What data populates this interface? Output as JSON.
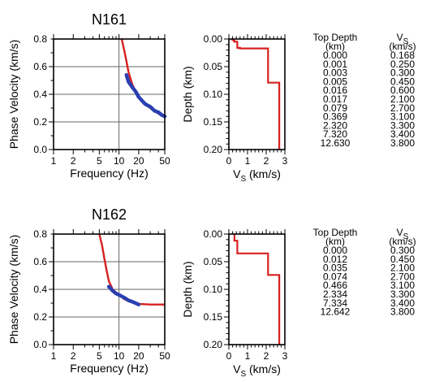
{
  "colors": {
    "model": "#d62020",
    "observed": "#2a3fb0",
    "grid": "#666666",
    "axis": "#000000"
  },
  "chart_data": [
    {
      "station": "N161",
      "dispersion": {
        "type": "line",
        "title": "N161",
        "xlabel": "Frequency (Hz)",
        "ylabel": "Phase Velocity (km/s)",
        "x_scale": "log",
        "xlim": [
          1,
          50
        ],
        "ylim": [
          0,
          0.8
        ],
        "x_ticks": [
          "1",
          "2",
          "5",
          "10",
          "20",
          "50"
        ],
        "y_ticks": [
          "0.0",
          "0.2",
          "0.4",
          "0.6",
          "0.8"
        ],
        "series": [
          {
            "kind": "model",
            "x": [
              11,
              12,
              13,
              14,
              16,
              18,
              20,
              25,
              30,
              40,
              50
            ],
            "y": [
              0.8,
              0.72,
              0.64,
              0.56,
              0.47,
              0.42,
              0.38,
              0.33,
              0.3,
              0.26,
              0.24
            ]
          },
          {
            "kind": "observed",
            "x": [
              13,
              14,
              16,
              18,
              20,
              25,
              30,
              35,
              40,
              45,
              50
            ],
            "y": [
              0.54,
              0.49,
              0.45,
              0.42,
              0.38,
              0.33,
              0.31,
              0.28,
              0.27,
              0.25,
              0.24
            ]
          }
        ]
      },
      "profile": {
        "type": "line",
        "xlabel_main": "V",
        "xlabel_sub": "S",
        "xlabel_unit": " (km/s)",
        "ylabel": "Depth (km)",
        "xlim": [
          0,
          3
        ],
        "ylim": [
          0,
          0.2
        ],
        "x_ticks": [
          "0",
          "1",
          "2",
          "3"
        ],
        "y_ticks": [
          "0.00",
          "0.05",
          "0.10",
          "0.15",
          "0.20"
        ],
        "top_depth": [
          0.0,
          0.001,
          0.003,
          0.005,
          0.016,
          0.017,
          0.079,
          0.369
        ],
        "vs": [
          0.168,
          0.25,
          0.3,
          0.45,
          0.6,
          2.1,
          2.7,
          3.1
        ]
      },
      "table": {
        "h1": "Top Depth",
        "h1_unit": "(km)",
        "h2_main": "V",
        "h2_sub": "S",
        "h2_unit": "(km/s)",
        "depths": [
          "0.000",
          "0.001",
          "0.003",
          "0.005",
          "0.016",
          "0.017",
          "0.079",
          "0.369",
          "2.320",
          "7.320",
          "12.630"
        ],
        "vs": [
          "0.168",
          "0.250",
          "0.300",
          "0.450",
          "0.600",
          "2.100",
          "2.700",
          "3.100",
          "3.300",
          "3.400",
          "3.800"
        ]
      }
    },
    {
      "station": "N162",
      "dispersion": {
        "type": "line",
        "title": "N162",
        "xlabel": "Frequency (Hz)",
        "ylabel": "Phase Velocity (km/s)",
        "x_scale": "log",
        "xlim": [
          1,
          50
        ],
        "ylim": [
          0,
          0.8
        ],
        "x_ticks": [
          "1",
          "2",
          "5",
          "10",
          "20",
          "50"
        ],
        "y_ticks": [
          "0.0",
          "0.2",
          "0.4",
          "0.6",
          "0.8"
        ],
        "series": [
          {
            "kind": "model",
            "x": [
              5,
              5.5,
              6,
              6.5,
              7,
              8,
              10,
              12,
              15,
              20,
              30,
              50
            ],
            "y": [
              0.8,
              0.72,
              0.62,
              0.53,
              0.46,
              0.4,
              0.36,
              0.33,
              0.31,
              0.295,
              0.29,
              0.29
            ]
          },
          {
            "kind": "observed",
            "x": [
              7,
              8,
              9,
              10,
              12,
              14,
              16,
              18,
              20
            ],
            "y": [
              0.42,
              0.39,
              0.37,
              0.36,
              0.34,
              0.32,
              0.31,
              0.3,
              0.29
            ]
          }
        ]
      },
      "profile": {
        "type": "line",
        "xlabel_main": "V",
        "xlabel_sub": "S",
        "xlabel_unit": " (km/s)",
        "ylabel": "Depth (km)",
        "xlim": [
          0,
          3
        ],
        "ylim": [
          0,
          0.2
        ],
        "x_ticks": [
          "0",
          "1",
          "2",
          "3"
        ],
        "y_ticks": [
          "0.00",
          "0.05",
          "0.10",
          "0.15",
          "0.20"
        ],
        "top_depth": [
          0.0,
          0.012,
          0.035,
          0.074,
          0.466
        ],
        "vs": [
          0.3,
          0.45,
          2.1,
          2.7,
          3.1
        ]
      },
      "table": {
        "h1": "Top Depth",
        "h1_unit": "(km)",
        "h2_main": "V",
        "h2_sub": "S",
        "h2_unit": "(km/s)",
        "depths": [
          "0.000",
          "0.012",
          "0.035",
          "0.074",
          "0.466",
          "2.334",
          "7.334",
          "12.642"
        ],
        "vs": [
          "0.300",
          "0.450",
          "2.100",
          "2.700",
          "3.100",
          "3.300",
          "3.400",
          "3.800"
        ]
      }
    }
  ]
}
